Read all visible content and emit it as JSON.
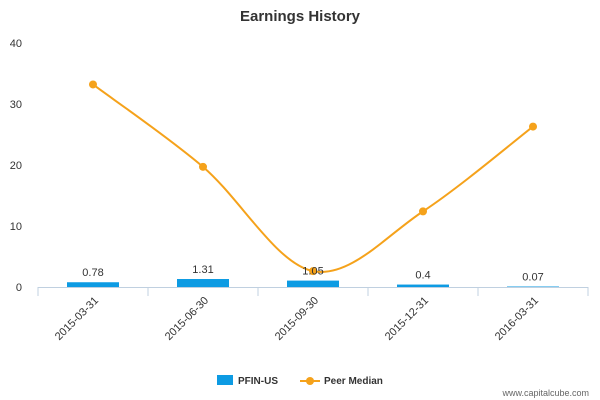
{
  "chart_data": {
    "type": "bar",
    "title": "Earnings History",
    "categories": [
      "2015-03-31",
      "2015-06-30",
      "2015-09-30",
      "2015-12-31",
      "2016-03-31"
    ],
    "ylim": [
      0,
      40
    ],
    "yticks": [
      0,
      10,
      20,
      30,
      40
    ],
    "series": [
      {
        "name": "PFIN-US",
        "type": "bar",
        "color": "#0d9be3",
        "values": [
          0.78,
          1.31,
          1.05,
          0.4,
          0.07
        ],
        "labels": [
          "0.78",
          "1.31",
          "1.05",
          "0.4",
          "0.07"
        ]
      },
      {
        "name": "Peer Median",
        "type": "line",
        "color": "#f5a21b",
        "values": [
          33.2,
          19.7,
          2.6,
          12.4,
          26.3
        ]
      }
    ]
  },
  "credit": "www.capitalcube.com"
}
